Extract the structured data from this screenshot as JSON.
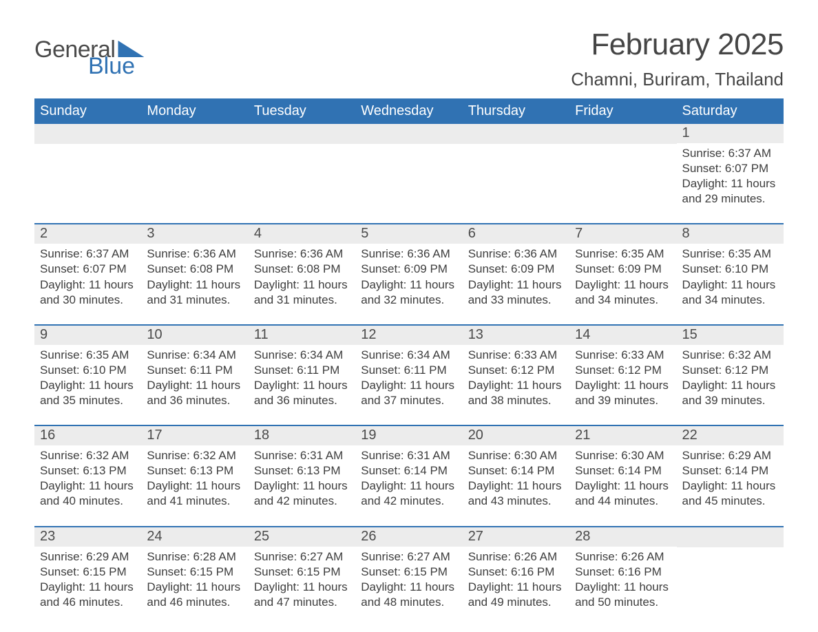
{
  "logo": {
    "text1": "General",
    "text2": "Blue"
  },
  "title": "February 2025",
  "location": "Chamni, Buriram, Thailand",
  "colors": {
    "header_bg": "#3072b3",
    "header_text": "#ffffff",
    "daynum_bg": "#ececec",
    "text": "#3d3d3d",
    "divider": "#3072b3",
    "page_bg": "#ffffff"
  },
  "fonts": {
    "title_size": 44,
    "location_size": 26,
    "dow_size": 20,
    "daynum_size": 20,
    "body_size": 17
  },
  "days_of_week": [
    "Sunday",
    "Monday",
    "Tuesday",
    "Wednesday",
    "Thursday",
    "Friday",
    "Saturday"
  ],
  "weeks": [
    [
      {
        "day": null
      },
      {
        "day": null
      },
      {
        "day": null
      },
      {
        "day": null
      },
      {
        "day": null
      },
      {
        "day": null
      },
      {
        "day": "1",
        "sunrise": "Sunrise: 6:37 AM",
        "sunset": "Sunset: 6:07 PM",
        "daylight": "Daylight: 11 hours and 29 minutes."
      }
    ],
    [
      {
        "day": "2",
        "sunrise": "Sunrise: 6:37 AM",
        "sunset": "Sunset: 6:07 PM",
        "daylight": "Daylight: 11 hours and 30 minutes."
      },
      {
        "day": "3",
        "sunrise": "Sunrise: 6:36 AM",
        "sunset": "Sunset: 6:08 PM",
        "daylight": "Daylight: 11 hours and 31 minutes."
      },
      {
        "day": "4",
        "sunrise": "Sunrise: 6:36 AM",
        "sunset": "Sunset: 6:08 PM",
        "daylight": "Daylight: 11 hours and 31 minutes."
      },
      {
        "day": "5",
        "sunrise": "Sunrise: 6:36 AM",
        "sunset": "Sunset: 6:09 PM",
        "daylight": "Daylight: 11 hours and 32 minutes."
      },
      {
        "day": "6",
        "sunrise": "Sunrise: 6:36 AM",
        "sunset": "Sunset: 6:09 PM",
        "daylight": "Daylight: 11 hours and 33 minutes."
      },
      {
        "day": "7",
        "sunrise": "Sunrise: 6:35 AM",
        "sunset": "Sunset: 6:09 PM",
        "daylight": "Daylight: 11 hours and 34 minutes."
      },
      {
        "day": "8",
        "sunrise": "Sunrise: 6:35 AM",
        "sunset": "Sunset: 6:10 PM",
        "daylight": "Daylight: 11 hours and 34 minutes."
      }
    ],
    [
      {
        "day": "9",
        "sunrise": "Sunrise: 6:35 AM",
        "sunset": "Sunset: 6:10 PM",
        "daylight": "Daylight: 11 hours and 35 minutes."
      },
      {
        "day": "10",
        "sunrise": "Sunrise: 6:34 AM",
        "sunset": "Sunset: 6:11 PM",
        "daylight": "Daylight: 11 hours and 36 minutes."
      },
      {
        "day": "11",
        "sunrise": "Sunrise: 6:34 AM",
        "sunset": "Sunset: 6:11 PM",
        "daylight": "Daylight: 11 hours and 36 minutes."
      },
      {
        "day": "12",
        "sunrise": "Sunrise: 6:34 AM",
        "sunset": "Sunset: 6:11 PM",
        "daylight": "Daylight: 11 hours and 37 minutes."
      },
      {
        "day": "13",
        "sunrise": "Sunrise: 6:33 AM",
        "sunset": "Sunset: 6:12 PM",
        "daylight": "Daylight: 11 hours and 38 minutes."
      },
      {
        "day": "14",
        "sunrise": "Sunrise: 6:33 AM",
        "sunset": "Sunset: 6:12 PM",
        "daylight": "Daylight: 11 hours and 39 minutes."
      },
      {
        "day": "15",
        "sunrise": "Sunrise: 6:32 AM",
        "sunset": "Sunset: 6:12 PM",
        "daylight": "Daylight: 11 hours and 39 minutes."
      }
    ],
    [
      {
        "day": "16",
        "sunrise": "Sunrise: 6:32 AM",
        "sunset": "Sunset: 6:13 PM",
        "daylight": "Daylight: 11 hours and 40 minutes."
      },
      {
        "day": "17",
        "sunrise": "Sunrise: 6:32 AM",
        "sunset": "Sunset: 6:13 PM",
        "daylight": "Daylight: 11 hours and 41 minutes."
      },
      {
        "day": "18",
        "sunrise": "Sunrise: 6:31 AM",
        "sunset": "Sunset: 6:13 PM",
        "daylight": "Daylight: 11 hours and 42 minutes."
      },
      {
        "day": "19",
        "sunrise": "Sunrise: 6:31 AM",
        "sunset": "Sunset: 6:14 PM",
        "daylight": "Daylight: 11 hours and 42 minutes."
      },
      {
        "day": "20",
        "sunrise": "Sunrise: 6:30 AM",
        "sunset": "Sunset: 6:14 PM",
        "daylight": "Daylight: 11 hours and 43 minutes."
      },
      {
        "day": "21",
        "sunrise": "Sunrise: 6:30 AM",
        "sunset": "Sunset: 6:14 PM",
        "daylight": "Daylight: 11 hours and 44 minutes."
      },
      {
        "day": "22",
        "sunrise": "Sunrise: 6:29 AM",
        "sunset": "Sunset: 6:14 PM",
        "daylight": "Daylight: 11 hours and 45 minutes."
      }
    ],
    [
      {
        "day": "23",
        "sunrise": "Sunrise: 6:29 AM",
        "sunset": "Sunset: 6:15 PM",
        "daylight": "Daylight: 11 hours and 46 minutes."
      },
      {
        "day": "24",
        "sunrise": "Sunrise: 6:28 AM",
        "sunset": "Sunset: 6:15 PM",
        "daylight": "Daylight: 11 hours and 46 minutes."
      },
      {
        "day": "25",
        "sunrise": "Sunrise: 6:27 AM",
        "sunset": "Sunset: 6:15 PM",
        "daylight": "Daylight: 11 hours and 47 minutes."
      },
      {
        "day": "26",
        "sunrise": "Sunrise: 6:27 AM",
        "sunset": "Sunset: 6:15 PM",
        "daylight": "Daylight: 11 hours and 48 minutes."
      },
      {
        "day": "27",
        "sunrise": "Sunrise: 6:26 AM",
        "sunset": "Sunset: 6:16 PM",
        "daylight": "Daylight: 11 hours and 49 minutes."
      },
      {
        "day": "28",
        "sunrise": "Sunrise: 6:26 AM",
        "sunset": "Sunset: 6:16 PM",
        "daylight": "Daylight: 11 hours and 50 minutes."
      },
      {
        "day": null
      }
    ]
  ]
}
